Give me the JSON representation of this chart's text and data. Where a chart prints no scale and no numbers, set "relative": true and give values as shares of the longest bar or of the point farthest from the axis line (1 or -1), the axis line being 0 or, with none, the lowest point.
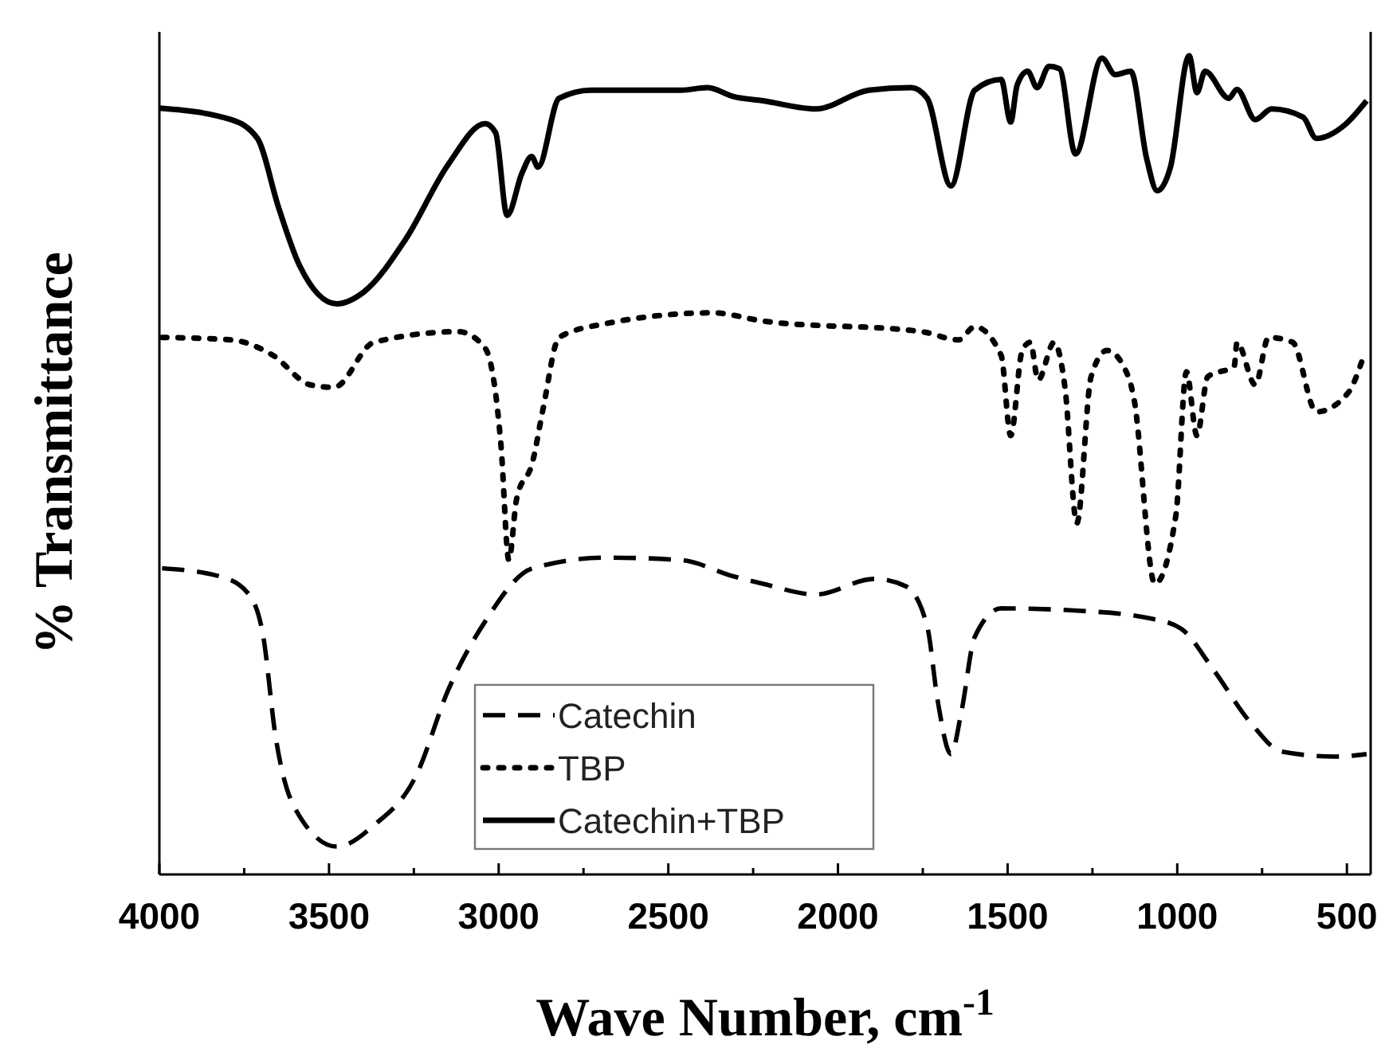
{
  "chart_data": {
    "type": "line",
    "relative": true,
    "xlabel": "Wave Number, cm$^{-1}$",
    "ylabel": "% Transmittance",
    "xlim": [
      4000,
      430
    ],
    "xticks": [
      4000,
      {
        "value": 3750,
        "label": null
      },
      3500,
      {
        "value": 3250,
        "label": null
      },
      3000,
      {
        "value": 2750,
        "label": null
      },
      2500,
      {
        "value": 2250,
        "label": null
      },
      2000,
      {
        "value": 1750,
        "label": null
      },
      1500,
      {
        "value": 1250,
        "label": null
      },
      1000,
      {
        "value": 750,
        "label": null
      },
      500
    ],
    "legend": "bottom",
    "grid": false,
    "series": [
      {
        "name": "Catechin",
        "color": "#000000",
        "line_style": "dashed",
        "x": [
          3992,
          3821,
          3742,
          3696,
          3657,
          3602,
          3477,
          3368,
          3243,
          3149,
          3040,
          2900,
          2682,
          2463,
          2307,
          2221,
          2065,
          1893,
          1800,
          1737,
          1706,
          1667,
          1636,
          1597,
          1519,
          1285,
          1082,
          988,
          895,
          785,
          692,
          536,
          442
        ],
        "values": [
          0.374,
          0.364,
          0.345,
          0.296,
          0.167,
          0.082,
          0.034,
          0.06,
          0.121,
          0.225,
          0.309,
          0.374,
          0.387,
          0.384,
          0.364,
          0.355,
          0.342,
          0.361,
          0.352,
          0.303,
          0.212,
          0.147,
          0.199,
          0.29,
          0.325,
          0.322,
          0.313,
          0.3,
          0.251,
          0.186,
          0.15,
          0.144,
          0.147
        ]
      },
      {
        "name": "TBP",
        "color": "#000000",
        "line_style": "dotted",
        "x": [
          3992,
          3789,
          3665,
          3555,
          3485,
          3368,
          3118,
          3040,
          2993,
          2970,
          2947,
          2900,
          2869,
          2822,
          2682,
          2370,
          2221,
          1753,
          1644,
          1597,
          1519,
          1491,
          1457,
          1433,
          1410,
          1363,
          1331,
          1296,
          1254,
          1207,
          1144,
          1128,
          1066,
          1004,
          973,
          942,
          910,
          832,
          824,
          770,
          731,
          660,
          590,
          497,
          450
        ],
        "values": [
          0.656,
          0.653,
          0.634,
          0.598,
          0.595,
          0.65,
          0.663,
          0.643,
          0.523,
          0.384,
          0.459,
          0.504,
          0.569,
          0.656,
          0.673,
          0.686,
          0.676,
          0.663,
          0.653,
          0.669,
          0.634,
          0.536,
          0.64,
          0.65,
          0.604,
          0.65,
          0.595,
          0.429,
          0.608,
          0.64,
          0.608,
          0.582,
          0.355,
          0.439,
          0.614,
          0.536,
          0.608,
          0.621,
          0.65,
          0.598,
          0.656,
          0.65,
          0.565,
          0.588,
          0.634
        ]
      },
      {
        "name": "Catechin+TBP",
        "color": "#000000",
        "line_style": "solid",
        "x": [
          4000,
          3789,
          3711,
          3649,
          3587,
          3477,
          3399,
          3274,
          3149,
          3040,
          3009,
          2975,
          2931,
          2903,
          2884,
          2822,
          2728,
          2463,
          2385,
          2307,
          2221,
          2065,
          1909,
          1784,
          1737,
          1667,
          1597,
          1519,
          1491,
          1472,
          1441,
          1413,
          1378,
          1347,
          1300,
          1222,
          1183,
          1137,
          1090,
          1059,
          1020,
          965,
          942,
          918,
          848,
          824,
          770,
          722,
          629,
          590,
          505,
          442
        ],
        "values": [
          0.936,
          0.922,
          0.899,
          0.815,
          0.744,
          0.697,
          0.711,
          0.776,
          0.867,
          0.917,
          0.906,
          0.805,
          0.857,
          0.877,
          0.864,
          0.948,
          0.958,
          0.958,
          0.961,
          0.95,
          0.945,
          0.935,
          0.958,
          0.961,
          0.948,
          0.841,
          0.958,
          0.971,
          0.919,
          0.964,
          0.981,
          0.961,
          0.987,
          0.984,
          0.88,
          0.997,
          0.977,
          0.981,
          0.874,
          0.835,
          0.864,
          1.0,
          0.955,
          0.981,
          0.948,
          0.959,
          0.922,
          0.935,
          0.925,
          0.899,
          0.916,
          0.945
        ]
      }
    ]
  }
}
